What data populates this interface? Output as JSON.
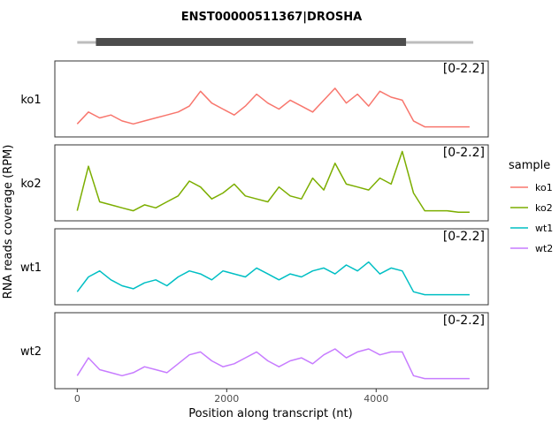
{
  "chart_data": {
    "type": "line",
    "title": "ENST00000511367|DROSHA",
    "xlabel": "Position along transcript (nt)",
    "ylabel": "RNA reads coverage (RPM)",
    "xlim": [
      -300,
      5500
    ],
    "ylim": [
      0,
      2.2
    ],
    "xticks": [
      0,
      2000,
      4000
    ],
    "xtick_labels": [
      "0",
      "2000",
      "4000"
    ],
    "range_label": "[0-2.2]",
    "legend": {
      "title": "sample",
      "position": "right"
    },
    "gene_model": {
      "transcript": [
        0,
        5300
      ],
      "cds": [
        250,
        4400
      ]
    },
    "x": [
      0,
      150,
      300,
      450,
      600,
      750,
      900,
      1050,
      1200,
      1350,
      1500,
      1650,
      1800,
      1950,
      2100,
      2250,
      2400,
      2550,
      2700,
      2850,
      3000,
      3150,
      3300,
      3450,
      3600,
      3750,
      3900,
      4050,
      4200,
      4350,
      4500,
      4650,
      4800,
      4950,
      5100,
      5250
    ],
    "series": [
      {
        "name": "ko1",
        "color": "#F8766D",
        "values": [
          0.2,
          0.6,
          0.4,
          0.5,
          0.3,
          0.2,
          0.3,
          0.4,
          0.5,
          0.6,
          0.8,
          1.3,
          0.9,
          0.7,
          0.5,
          0.8,
          1.2,
          0.9,
          0.7,
          1.0,
          0.8,
          0.6,
          1.0,
          1.4,
          0.9,
          1.2,
          0.8,
          1.3,
          1.1,
          1.0,
          0.3,
          0.1,
          0.1,
          0.1,
          0.1,
          0.1
        ]
      },
      {
        "name": "ko2",
        "color": "#7CAE00",
        "values": [
          0.1,
          1.6,
          0.4,
          0.3,
          0.2,
          0.1,
          0.3,
          0.2,
          0.4,
          0.6,
          1.1,
          0.9,
          0.5,
          0.7,
          1.0,
          0.6,
          0.5,
          0.4,
          0.9,
          0.6,
          0.5,
          1.2,
          0.8,
          1.7,
          1.0,
          0.9,
          0.8,
          1.2,
          1.0,
          2.1,
          0.7,
          0.1,
          0.1,
          0.1,
          0.05,
          0.05
        ]
      },
      {
        "name": "wt1",
        "color": "#00BFC4",
        "values": [
          0.2,
          0.7,
          0.9,
          0.6,
          0.4,
          0.3,
          0.5,
          0.6,
          0.4,
          0.7,
          0.9,
          0.8,
          0.6,
          0.9,
          0.8,
          0.7,
          1.0,
          0.8,
          0.6,
          0.8,
          0.7,
          0.9,
          1.0,
          0.8,
          1.1,
          0.9,
          1.2,
          0.8,
          1.0,
          0.9,
          0.2,
          0.1,
          0.1,
          0.1,
          0.1,
          0.1
        ]
      },
      {
        "name": "wt2",
        "color": "#C77CFF",
        "values": [
          0.2,
          0.8,
          0.4,
          0.3,
          0.2,
          0.3,
          0.5,
          0.4,
          0.3,
          0.6,
          0.9,
          1.0,
          0.7,
          0.5,
          0.6,
          0.8,
          1.0,
          0.7,
          0.5,
          0.7,
          0.8,
          0.6,
          0.9,
          1.1,
          0.8,
          1.0,
          1.1,
          0.9,
          1.0,
          1.0,
          0.2,
          0.1,
          0.1,
          0.1,
          0.1,
          0.1
        ]
      }
    ]
  }
}
